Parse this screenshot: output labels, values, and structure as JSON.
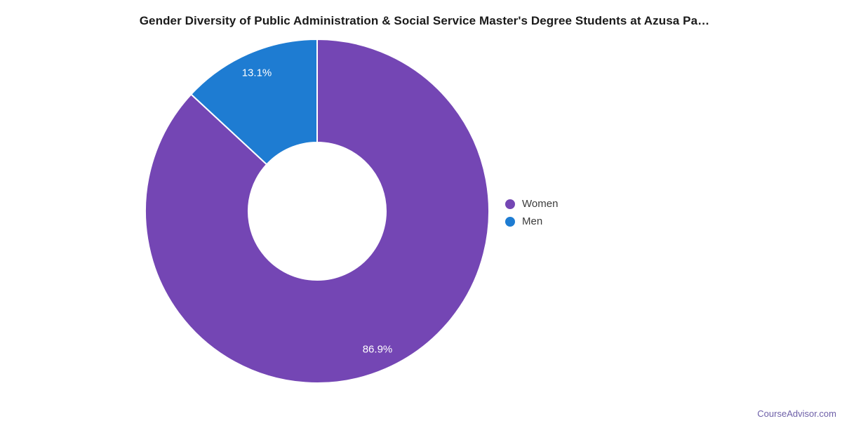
{
  "chart_data": {
    "type": "pie",
    "subtype": "donut",
    "title": "Gender Diversity of Public Administration & Social Service Master's Degree Students at Azusa Pa…",
    "categories": [
      "Women",
      "Men"
    ],
    "series": [
      {
        "name": "Women",
        "value": 86.9,
        "display": "86.9%",
        "color": "#7446B4"
      },
      {
        "name": "Men",
        "value": 13.1,
        "display": "13.1%",
        "color": "#1E7CD2"
      }
    ],
    "unit": "%",
    "legend_position": "right",
    "slice_label_color": "#ffffff",
    "slice_border_color": "#ffffff",
    "start_angle_deg": 0,
    "direction": "clockwise"
  },
  "watermark": {
    "text": "CourseAdvisor.com",
    "color": "#6E60A8"
  }
}
